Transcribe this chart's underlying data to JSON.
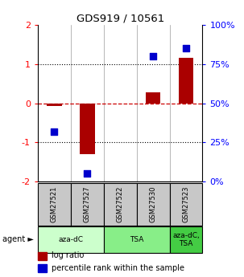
{
  "title": "GDS919 / 10561",
  "samples": [
    "GSM27521",
    "GSM27527",
    "GSM27522",
    "GSM27530",
    "GSM27523"
  ],
  "log_ratios": [
    -0.08,
    -1.3,
    0.0,
    0.28,
    1.15
  ],
  "percentile_ranks": [
    32,
    5,
    null,
    80,
    85
  ],
  "agents": [
    {
      "label": "aza-dC",
      "span": [
        0,
        2
      ],
      "color": "#ccffcc"
    },
    {
      "label": "TSA",
      "span": [
        2,
        4
      ],
      "color": "#88ee88"
    },
    {
      "label": "aza-dC,\nTSA",
      "span": [
        4,
        5
      ],
      "color": "#44cc44"
    }
  ],
  "ylim_left": [
    -2,
    2
  ],
  "ylim_right": [
    0,
    100
  ],
  "bar_color": "#aa0000",
  "dot_color": "#0000cc",
  "bar_width": 0.45,
  "dot_size": 40,
  "zero_line_color": "#cc0000",
  "background_color": "#ffffff",
  "label_log": "log ratio",
  "label_pct": "percentile rank within the sample",
  "agent_label": "agent ►",
  "left_tick_labels": [
    "-2",
    "-1",
    "0",
    "1",
    "2"
  ],
  "left_tick_values": [
    -2,
    -1,
    0,
    1,
    2
  ],
  "right_tick_labels": [
    "0%",
    "25%",
    "50%",
    "75%",
    "100%"
  ],
  "right_tick_values": [
    0,
    25,
    50,
    75,
    100
  ]
}
